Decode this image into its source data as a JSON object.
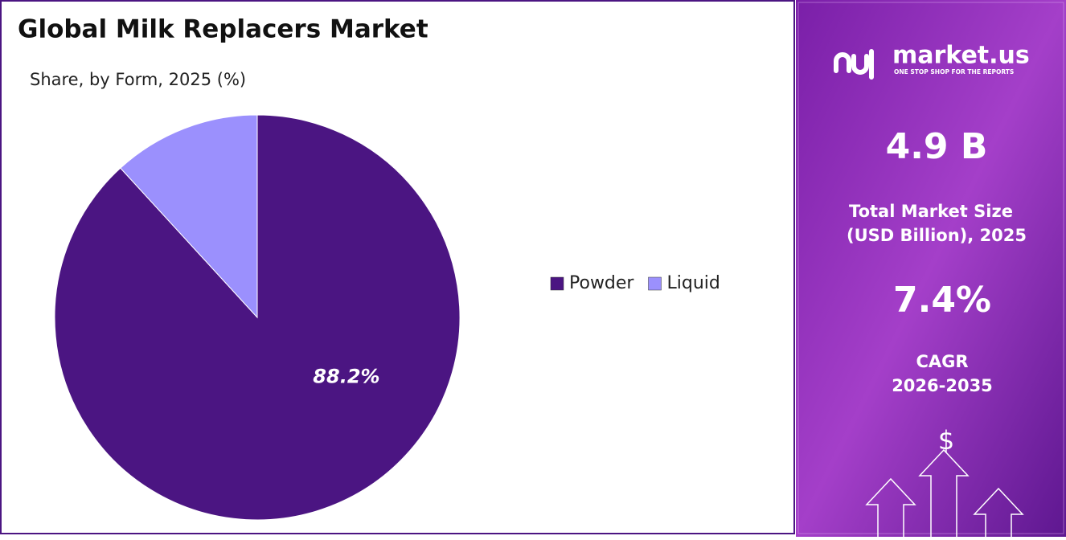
{
  "chart_data": {
    "type": "pie",
    "title": "Global Milk Replacers Market",
    "subtitle": "Share, by Form, 2025 (%)",
    "categories": [
      "Powder",
      "Liquid"
    ],
    "values": [
      88.2,
      11.8
    ],
    "value_labels": [
      "88.2%",
      null
    ],
    "colors": [
      "#4b1582",
      "#9b90fd"
    ],
    "legend": "right"
  },
  "sidebar": {
    "logo": "market.us",
    "tagline": "ONE STOP SHOP FOR THE REPORTS",
    "market_size": "4.9 B",
    "market_size_label": [
      "Total Market Size",
      "(USD Billion), 2025"
    ],
    "cagr": "7.4%",
    "cagr_label": [
      "CAGR",
      "2026-2035"
    ],
    "icon_symbol": "$"
  }
}
